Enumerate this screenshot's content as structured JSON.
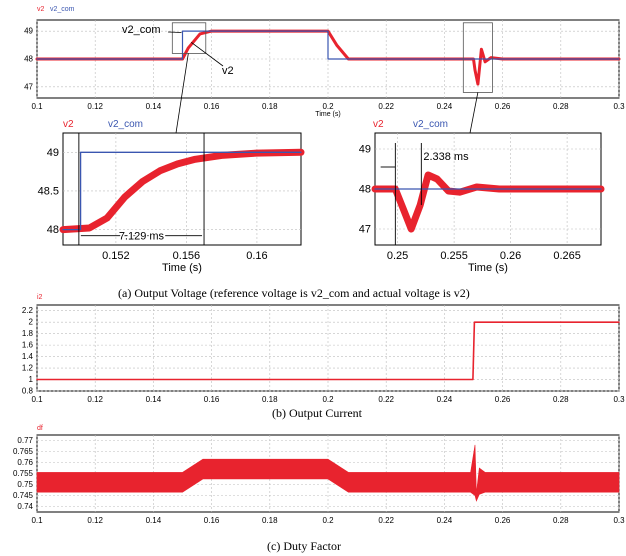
{
  "colors": {
    "signal": "#e8232e",
    "reference": "#3a56b0",
    "grid": "#bdbdbd",
    "axis": "#000000"
  },
  "captions": {
    "a": "(a) Output Voltage (reference voltage is v2_com and actual voltage is v2)",
    "b": "(b) Output Current",
    "c": "(c) Duty Factor"
  },
  "chart_data": [
    {
      "id": "voltage-main",
      "type": "line",
      "legend": [
        "v2",
        "v2_com"
      ],
      "xlabel": "Time (s)",
      "xlim": [
        0.1,
        0.3
      ],
      "ylim": [
        46.6,
        49.4
      ],
      "xticks": [
        "0.1",
        "0.12",
        "0.14",
        "0.16",
        "0.18",
        "0.2",
        "0.22",
        "0.24",
        "0.26",
        "0.28",
        "0.3"
      ],
      "yticks": [
        "47",
        "48",
        "49"
      ],
      "grid": true,
      "annotations": [
        "v2_com",
        "v2"
      ],
      "series": [
        {
          "name": "v2_com",
          "x": [
            0.1,
            0.15,
            0.15,
            0.2,
            0.2,
            0.3
          ],
          "y": [
            48,
            48,
            49,
            49,
            48,
            48
          ]
        },
        {
          "name": "v2",
          "x": [
            0.1,
            0.15,
            0.152,
            0.156,
            0.16,
            0.2,
            0.203,
            0.207,
            0.25,
            0.2505,
            0.2515,
            0.2527,
            0.254,
            0.256,
            0.26,
            0.3
          ],
          "y": [
            48,
            48,
            48.4,
            48.9,
            49,
            49,
            48.5,
            48,
            48,
            47.6,
            47.1,
            48.35,
            47.9,
            48.05,
            48,
            48
          ]
        }
      ]
    },
    {
      "id": "voltage-zoom-step",
      "type": "line",
      "legend": [
        "v2",
        "v2_com"
      ],
      "xlabel": "Time (s)",
      "xlim": [
        0.149,
        0.1625
      ],
      "ylim": [
        47.8,
        49.25
      ],
      "xticks": [
        "0.152",
        "0.156",
        "0.16"
      ],
      "yticks": [
        "48",
        "48.5",
        "49"
      ],
      "grid": true,
      "annotations": [
        "7.129 ms"
      ],
      "series": [
        {
          "name": "v2_com",
          "x": [
            0.149,
            0.15,
            0.15,
            0.1625
          ],
          "y": [
            48,
            48,
            49,
            49
          ]
        },
        {
          "name": "v2",
          "x": [
            0.149,
            0.1505,
            0.1515,
            0.1525,
            0.1535,
            0.1545,
            0.1555,
            0.1565,
            0.158,
            0.16,
            0.1625
          ],
          "y": [
            48,
            48.02,
            48.15,
            48.42,
            48.62,
            48.76,
            48.85,
            48.91,
            48.96,
            48.99,
            49
          ]
        }
      ]
    },
    {
      "id": "voltage-zoom-load",
      "type": "line",
      "legend": [
        "v2",
        "v2_com"
      ],
      "xlabel": "Time (s)",
      "xlim": [
        0.248,
        0.268
      ],
      "ylim": [
        46.6,
        49.4
      ],
      "xticks": [
        "0.25",
        "0.255",
        "0.26",
        "0.265"
      ],
      "yticks": [
        "47",
        "48",
        "49"
      ],
      "grid": true,
      "annotations": [
        "2.338 ms"
      ],
      "series": [
        {
          "name": "v2_com",
          "x": [
            0.248,
            0.268
          ],
          "y": [
            48,
            48
          ]
        },
        {
          "name": "v2",
          "x": [
            0.248,
            0.2498,
            0.2505,
            0.2512,
            0.252,
            0.2527,
            0.2535,
            0.2545,
            0.2555,
            0.257,
            0.259,
            0.262,
            0.268
          ],
          "y": [
            48,
            48,
            47.5,
            47.0,
            47.6,
            48.35,
            48.25,
            47.95,
            47.92,
            48.05,
            48,
            48,
            48
          ]
        }
      ]
    },
    {
      "id": "output-current",
      "type": "line",
      "legend": [
        "i2"
      ],
      "xlabel": "",
      "xlim": [
        0.1,
        0.3
      ],
      "ylim": [
        0.8,
        2.3
      ],
      "xticks": [
        "0.1",
        "0.12",
        "0.14",
        "0.16",
        "0.18",
        "0.2",
        "0.22",
        "0.24",
        "0.26",
        "0.28",
        "0.3"
      ],
      "yticks": [
        "0.8",
        "1",
        "1.2",
        "1.4",
        "1.6",
        "1.8",
        "2",
        "2.2"
      ],
      "grid": true,
      "series": [
        {
          "name": "i2",
          "x": [
            0.1,
            0.2498,
            0.2503,
            0.3
          ],
          "y": [
            1,
            1,
            2,
            2
          ]
        }
      ]
    },
    {
      "id": "duty-factor",
      "type": "area",
      "legend": [
        "df"
      ],
      "xlabel": "",
      "xlim": [
        0.1,
        0.3
      ],
      "ylim": [
        0.7375,
        0.7725
      ],
      "xticks": [
        "0.1",
        "0.12",
        "0.14",
        "0.16",
        "0.18",
        "0.2",
        "0.22",
        "0.24",
        "0.26",
        "0.28",
        "0.3"
      ],
      "yticks": [
        "0.74",
        "0.745",
        "0.75",
        "0.755",
        "0.76",
        "0.765",
        "0.77"
      ],
      "grid": true,
      "series": [
        {
          "name": "df-upper",
          "x": [
            0.1,
            0.15,
            0.157,
            0.2,
            0.207,
            0.249,
            0.2505,
            0.251,
            0.252,
            0.254,
            0.3
          ],
          "y": [
            0.7555,
            0.7555,
            0.7615,
            0.7615,
            0.7555,
            0.7555,
            0.768,
            0.746,
            0.7575,
            0.7555,
            0.7555
          ]
        },
        {
          "name": "df-lower",
          "x": [
            0.1,
            0.15,
            0.157,
            0.2,
            0.207,
            0.249,
            0.2505,
            0.251,
            0.252,
            0.254,
            0.3
          ],
          "y": [
            0.7465,
            0.7465,
            0.7525,
            0.7525,
            0.7465,
            0.7465,
            0.745,
            0.7425,
            0.7455,
            0.7465,
            0.7465
          ]
        }
      ]
    }
  ]
}
